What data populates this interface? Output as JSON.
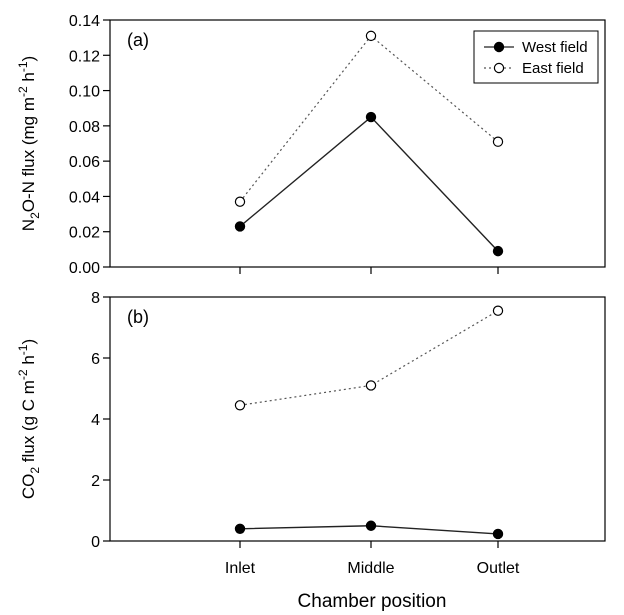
{
  "figure": {
    "xlabel": "Chamber position"
  },
  "legend": {
    "placement": "top-right",
    "entries": [
      {
        "label": "West field",
        "marker": "filled-circle",
        "line": "solid"
      },
      {
        "label": "East field",
        "marker": "open-circle",
        "line": "dotted"
      }
    ]
  },
  "chart_data": [
    {
      "type": "line",
      "panel_label": "(a)",
      "ylabel": {
        "base": "N",
        "sub": "2",
        "rest": "O-N flux (mg m",
        "sup1": "-2",
        "mid": " h",
        "sup2": "-1",
        "end": ")"
      },
      "categories": [
        "Inlet",
        "Middle",
        "Outlet"
      ],
      "ylim": [
        0,
        0.14
      ],
      "yticks": [
        "0.00",
        "0.02",
        "0.04",
        "0.06",
        "0.08",
        "0.10",
        "0.12",
        "0.14"
      ],
      "show_xticklabels": false,
      "grid": false,
      "series": [
        {
          "name": "West field",
          "values": [
            0.023,
            0.085,
            0.009
          ],
          "marker": "filled",
          "line": "solid"
        },
        {
          "name": "East field",
          "values": [
            0.037,
            0.131,
            0.071
          ],
          "marker": "open",
          "line": "dotted"
        }
      ]
    },
    {
      "type": "line",
      "panel_label": "(b)",
      "ylabel": {
        "base": "CO",
        "sub": "2",
        "rest": " flux (g C m",
        "sup1": "-2",
        "mid": " h",
        "sup2": "-1",
        "end": ")"
      },
      "categories": [
        "Inlet",
        "Middle",
        "Outlet"
      ],
      "ylim": [
        0,
        8
      ],
      "yticks": [
        "0",
        "2",
        "4",
        "6",
        "8"
      ],
      "show_xticklabels": true,
      "grid": false,
      "series": [
        {
          "name": "West field",
          "values": [
            0.4,
            0.5,
            0.23
          ],
          "marker": "filled",
          "line": "solid"
        },
        {
          "name": "East field",
          "values": [
            4.45,
            5.1,
            7.55
          ],
          "marker": "open",
          "line": "dotted"
        }
      ]
    }
  ]
}
